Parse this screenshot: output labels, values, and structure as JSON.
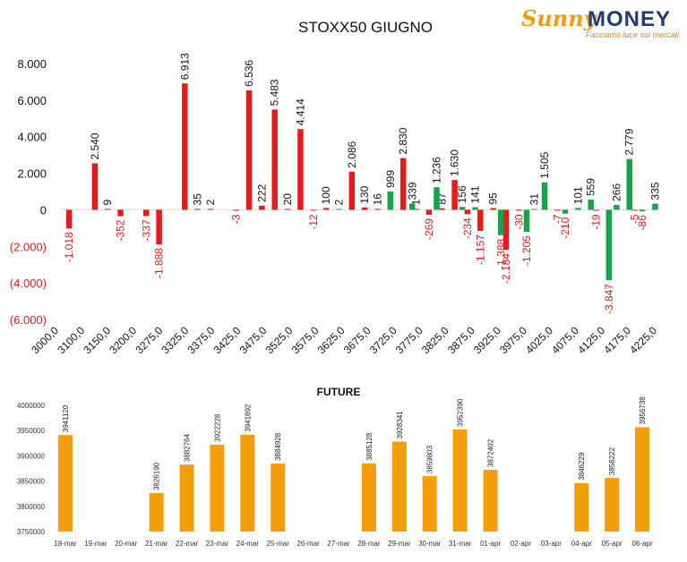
{
  "brand": {
    "sunny": "Sunny",
    "money": "MONEY",
    "tagline": "Facciamo luce sui mercati"
  },
  "colors": {
    "neg_bar": "#e8191b",
    "pos_bar": "#16a34a",
    "future_bar": "#f59e0b",
    "neg_label": "#e8191b",
    "text": "#111111"
  },
  "chart_data": [
    {
      "type": "bar",
      "title": "STOXX50 GIUGNO",
      "xlabel": "",
      "ylabel": "",
      "ylim": [
        -6000,
        8000
      ],
      "yticks": [
        8000,
        6000,
        4000,
        2000,
        0,
        -2000,
        -4000,
        -6000
      ],
      "ytick_labels": [
        "8.000",
        "6.000",
        "4.000",
        "2.000",
        "0",
        "(2.000)",
        "(4.000)",
        "(6.000)"
      ],
      "x_tick_labels": [
        "3000,0",
        "3100,0",
        "3150,0",
        "3200,0",
        "3275,0",
        "3325,0",
        "3375,0",
        "3425,0",
        "3475,0",
        "3525,0",
        "3575,0",
        "3625,0",
        "3675,0",
        "3725,0",
        "3775,0",
        "3825,0",
        "3875,0",
        "3925,0",
        "3975,0",
        "4025,0",
        "4075,0",
        "4125,0",
        "4175,0",
        "4225,0"
      ],
      "series": [
        {
          "color": "#e8191b",
          "points": [
            {
              "x": 0,
              "v": -1018,
              "label": "-1.018"
            },
            {
              "x": 2,
              "v": 2540,
              "label": "2.540"
            },
            {
              "x": 3,
              "v": 9,
              "label": "9"
            },
            {
              "x": 4,
              "v": -352,
              "label": "-352"
            },
            {
              "x": 6,
              "v": -337,
              "label": "-337"
            },
            {
              "x": 7,
              "v": -1888,
              "label": "-1.888"
            },
            {
              "x": 9,
              "v": 6913,
              "label": "6.913"
            },
            {
              "x": 10,
              "v": 35,
              "label": "35"
            },
            {
              "x": 11,
              "v": 2,
              "label": "2"
            },
            {
              "x": 13,
              "v": -3,
              "label": "-3"
            },
            {
              "x": 14,
              "v": 6536,
              "label": "6.536"
            },
            {
              "x": 15,
              "v": 222,
              "label": "222"
            },
            {
              "x": 16,
              "v": 5483,
              "label": "5.483"
            },
            {
              "x": 17,
              "v": 20,
              "label": "20"
            },
            {
              "x": 18,
              "v": 4414,
              "label": "4.414"
            },
            {
              "x": 19,
              "v": -12,
              "label": "-12"
            },
            {
              "x": 20,
              "v": 100,
              "label": "100"
            },
            {
              "x": 22,
              "v": 2086,
              "label": "2.086"
            },
            {
              "x": 23,
              "v": 130,
              "label": "130"
            },
            {
              "x": 24,
              "v": 16,
              "label": "16"
            },
            {
              "x": 26,
              "v": 2830,
              "label": "2.830"
            },
            {
              "x": 27,
              "v": 1,
              "label": "1"
            },
            {
              "x": 28,
              "v": -269,
              "label": "-269"
            },
            {
              "x": 29,
              "v": 87,
              "label": "87"
            },
            {
              "x": 30,
              "v": 1630,
              "label": "1.630"
            },
            {
              "x": 31,
              "v": -234,
              "label": "-234"
            },
            {
              "x": 32,
              "v": -1157,
              "label": "-1.157"
            },
            {
              "x": 33,
              "v": 95,
              "label": "95"
            },
            {
              "x": 34,
              "v": -2184,
              "label": "-2.184"
            },
            {
              "x": 35,
              "v": -30,
              "label": "-30"
            },
            {
              "x": 38,
              "v": -7,
              "label": "-7"
            },
            {
              "x": 41,
              "v": -19,
              "label": "-19"
            },
            {
              "x": 44,
              "v": -5,
              "label": "-5"
            }
          ]
        },
        {
          "color": "#16a34a",
          "points": [
            {
              "x": 21,
              "v": 2,
              "label": "2"
            },
            {
              "x": 25,
              "v": 999,
              "label": "999"
            },
            {
              "x": 26.7,
              "v": 339,
              "label": "339"
            },
            {
              "x": 28.6,
              "v": 1236,
              "label": "1.236"
            },
            {
              "x": 30.6,
              "v": 156,
              "label": "156"
            },
            {
              "x": 31.6,
              "v": 141,
              "label": "141"
            },
            {
              "x": 33.6,
              "v": -1388,
              "label": "-1.388"
            },
            {
              "x": 35.6,
              "v": -1205,
              "label": "-1.205"
            },
            {
              "x": 36.2,
              "v": 31,
              "label": "31"
            },
            {
              "x": 37,
              "v": 1505,
              "label": "1.505"
            },
            {
              "x": 38.6,
              "v": -210,
              "label": "-210"
            },
            {
              "x": 39.6,
              "v": 101,
              "label": "101"
            },
            {
              "x": 40.6,
              "v": 559,
              "label": "559"
            },
            {
              "x": 42,
              "v": -3847,
              "label": "-3.847"
            },
            {
              "x": 42.6,
              "v": 266,
              "label": "266"
            },
            {
              "x": 43.6,
              "v": 2779,
              "label": "2.779"
            },
            {
              "x": 44.6,
              "v": -86,
              "label": "-86"
            },
            {
              "x": 45.6,
              "v": 335,
              "label": "335"
            }
          ]
        }
      ]
    },
    {
      "type": "bar",
      "title": "FUTURE",
      "xlabel": "",
      "ylabel": "",
      "ylim": [
        3750000,
        4000000
      ],
      "yticks": [
        4000000,
        3950000,
        3900000,
        3850000,
        3800000,
        3750000
      ],
      "ytick_labels": [
        "4000000",
        "3950000",
        "3900000",
        "3850000",
        "3800000",
        "3750000"
      ],
      "categories": [
        "18-mar",
        "19-mar",
        "20-mar",
        "21-mar",
        "22-mar",
        "23-mar",
        "24-mar",
        "25-mar",
        "26-mar",
        "27-mar",
        "28-mar",
        "29-mar",
        "30-mar",
        "31-mar",
        "01-apr",
        "02-apr",
        "03-apr",
        "04-apr",
        "05-apr",
        "06-apr"
      ],
      "values": [
        3941120,
        null,
        null,
        3826190,
        3882764,
        3922228,
        3941892,
        3884928,
        null,
        null,
        3885128,
        3928341,
        3859803,
        3952390,
        3872402,
        null,
        null,
        3846229,
        3856222,
        3956738
      ],
      "value_labels": [
        "3941120",
        "",
        "",
        "3826190",
        "3882764",
        "3922228",
        "3941892",
        "3884928",
        "",
        "",
        "3885128",
        "3928341",
        "3859803",
        "3952390",
        "3872402",
        "",
        "",
        "3846229",
        "3856222",
        "3956738"
      ]
    }
  ]
}
